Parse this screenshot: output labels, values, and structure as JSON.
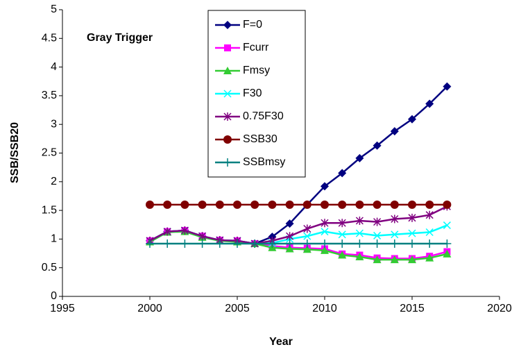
{
  "chart_data": {
    "type": "line",
    "annotation": "Gray Trigger",
    "xlabel": "Year",
    "ylabel": "SSB/SSB20",
    "x": [
      2000,
      2001,
      2002,
      2003,
      2004,
      2005,
      2006,
      2007,
      2008,
      2009,
      2010,
      2011,
      2012,
      2013,
      2014,
      2015,
      2016,
      2017
    ],
    "xlim": [
      1995,
      2020
    ],
    "xticks": [
      1995,
      2000,
      2005,
      2010,
      2015,
      2020
    ],
    "ylim": [
      0,
      5
    ],
    "yticks": [
      0,
      0.5,
      1,
      1.5,
      2,
      2.5,
      3,
      3.5,
      4,
      4.5,
      5
    ],
    "grid": false,
    "series": [
      {
        "name": "F=0",
        "color": "#000080",
        "marker": "diamond",
        "values": [
          0.97,
          1.13,
          1.15,
          1.05,
          0.98,
          0.97,
          0.92,
          1.04,
          1.27,
          1.6,
          1.92,
          2.15,
          2.41,
          2.63,
          2.88,
          3.09,
          3.36,
          3.66
        ]
      },
      {
        "name": "Fcurr",
        "color": "#ff00ff",
        "marker": "square",
        "values": [
          0.97,
          1.13,
          1.15,
          1.05,
          0.98,
          0.97,
          0.92,
          0.88,
          0.85,
          0.84,
          0.83,
          0.74,
          0.72,
          0.67,
          0.66,
          0.66,
          0.7,
          0.78
        ]
      },
      {
        "name": "Fmsy",
        "color": "#33cc33",
        "marker": "triangle",
        "values": [
          0.95,
          1.12,
          1.13,
          1.03,
          0.97,
          0.95,
          0.92,
          0.85,
          0.83,
          0.82,
          0.8,
          0.72,
          0.69,
          0.64,
          0.64,
          0.64,
          0.67,
          0.74
        ]
      },
      {
        "name": "F30",
        "color": "#00ffff",
        "marker": "x",
        "values": [
          0.97,
          1.13,
          1.15,
          1.05,
          0.98,
          0.97,
          0.92,
          0.93,
          1.0,
          1.05,
          1.13,
          1.08,
          1.1,
          1.06,
          1.08,
          1.1,
          1.12,
          1.24
        ]
      },
      {
        "name": "0.75F30",
        "color": "#800080",
        "marker": "star",
        "values": [
          0.97,
          1.13,
          1.15,
          1.05,
          0.98,
          0.97,
          0.92,
          0.97,
          1.05,
          1.18,
          1.28,
          1.28,
          1.32,
          1.3,
          1.35,
          1.37,
          1.42,
          1.57
        ]
      },
      {
        "name": "SSB30",
        "color": "#800000",
        "marker": "circle",
        "values": [
          1.6,
          1.6,
          1.6,
          1.6,
          1.6,
          1.6,
          1.6,
          1.6,
          1.6,
          1.6,
          1.6,
          1.6,
          1.6,
          1.6,
          1.6,
          1.6,
          1.6,
          1.6
        ]
      },
      {
        "name": "SSBmsy",
        "color": "#008080",
        "marker": "plus",
        "values": [
          0.92,
          0.92,
          0.92,
          0.92,
          0.92,
          0.92,
          0.92,
          0.92,
          0.92,
          0.92,
          0.92,
          0.92,
          0.92,
          0.92,
          0.92,
          0.92,
          0.92,
          0.92
        ]
      }
    ]
  }
}
